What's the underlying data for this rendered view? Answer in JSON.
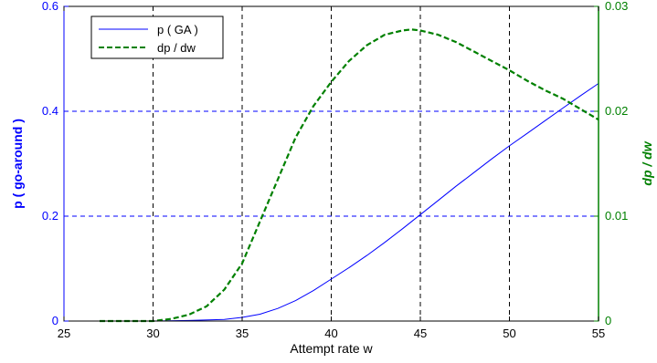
{
  "chart_data": {
    "type": "line",
    "title": "",
    "xlabel": "Attempt rate w",
    "ylabel_left": "p ( go-around )",
    "ylabel_right": "dp / dw",
    "xlim": [
      25,
      55
    ],
    "ylim_left": [
      0,
      0.6
    ],
    "ylim_right": [
      0,
      0.03
    ],
    "x_ticks": [
      25,
      30,
      35,
      40,
      45,
      50,
      55
    ],
    "y_left_ticks": [
      0,
      0.2,
      0.4,
      0.6
    ],
    "y_left_tick_labels": [
      "0",
      "0.2",
      "0.4",
      "0.6"
    ],
    "y_right_ticks": [
      0,
      0.01,
      0.02,
      0.03
    ],
    "y_right_tick_labels": [
      "0",
      "0.01",
      "0.02",
      "0.03"
    ],
    "grid": true,
    "legend_position": "top-left",
    "colors": {
      "left_axis": "#0000ff",
      "right_axis": "#008000",
      "x_grid": "#000000",
      "y_grid": "#0000ff"
    },
    "series": [
      {
        "name": "p ( GA )",
        "axis": "left",
        "color": "#0000ff",
        "style": "solid",
        "x": [
          27,
          30,
          32,
          34,
          35,
          36,
          37,
          38,
          39,
          40,
          41,
          42,
          43,
          44,
          45,
          46,
          47,
          48,
          49,
          50,
          51,
          52,
          53,
          54,
          55
        ],
        "y": [
          0,
          0,
          0.001,
          0.003,
          0.007,
          0.013,
          0.024,
          0.039,
          0.058,
          0.08,
          0.102,
          0.125,
          0.15,
          0.176,
          0.203,
          0.23,
          0.257,
          0.283,
          0.309,
          0.334,
          0.358,
          0.382,
          0.406,
          0.43,
          0.453
        ]
      },
      {
        "name": "dp / dw",
        "axis": "right",
        "color": "#008000",
        "style": "dashed",
        "x": [
          27,
          30,
          31,
          32,
          33,
          34,
          35,
          36,
          37,
          38,
          39,
          40,
          41,
          42,
          43,
          44,
          44.5,
          45,
          46,
          47,
          48,
          49,
          50,
          51,
          52,
          53,
          54,
          55
        ],
        "y": [
          0,
          0,
          0.0002,
          0.0006,
          0.0014,
          0.003,
          0.0055,
          0.0095,
          0.0135,
          0.0175,
          0.0205,
          0.0228,
          0.0248,
          0.0263,
          0.0273,
          0.0277,
          0.0278,
          0.0277,
          0.0273,
          0.0266,
          0.0257,
          0.0248,
          0.0239,
          0.0229,
          0.022,
          0.0212,
          0.0202,
          0.0192
        ]
      }
    ]
  }
}
